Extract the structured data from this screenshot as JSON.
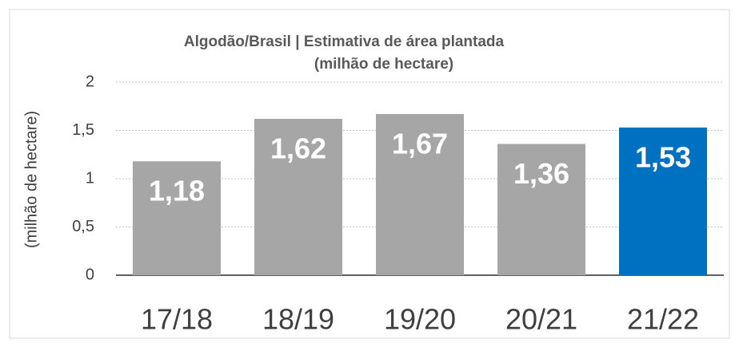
{
  "chart_data": {
    "type": "bar",
    "title": "Algodão/Brasil | Estimativa de área plantada",
    "subtitle": "(milhão de hectare)",
    "y_label": "(milhão de hectare)",
    "categories": [
      "17/18",
      "18/19",
      "19/20",
      "20/21",
      "21/22"
    ],
    "values": [
      1.18,
      1.62,
      1.67,
      1.36,
      1.53
    ],
    "value_labels": [
      "1,18",
      "1,62",
      "1,67",
      "1,36",
      "1,53"
    ],
    "colors": [
      "#a6a6a6",
      "#a6a6a6",
      "#a6a6a6",
      "#a6a6a6",
      "#0070c0"
    ],
    "ylim": [
      0,
      2
    ],
    "yticks": [
      0,
      {
        "value": 0.5,
        "label": "0,5"
      },
      1,
      {
        "value": 1.5,
        "label": "1,5"
      },
      2
    ],
    "grid": true
  }
}
